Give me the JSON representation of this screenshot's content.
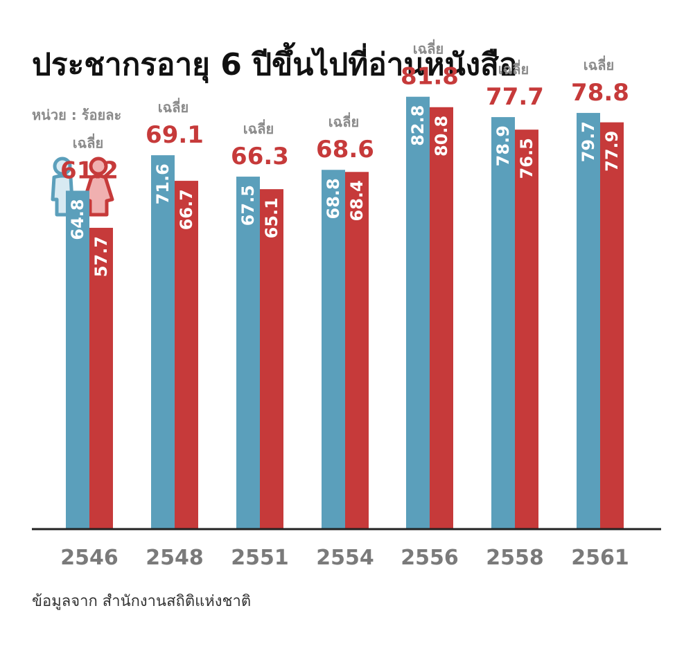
{
  "title": "ประชากรอายุ 6 ปีขึ้นไปที่อ่านหนังสือ",
  "unit_label": "หน่วย : ร้อยละ",
  "source": "ข้อมูลจาก  สำนักงานสถิติแห่งชาติ",
  "avg_label": "เฉลี่ย",
  "icons": [
    "male-icon",
    "female-icon"
  ],
  "colors": {
    "male": "#5b9fbb",
    "female": "#c63a3a",
    "axis": "#222222",
    "year": "#7a7a7a",
    "avg_label": "#8a8a8a"
  },
  "chart_data": {
    "type": "bar",
    "categories": [
      "2546",
      "2548",
      "2551",
      "2554",
      "2556",
      "2558",
      "2561"
    ],
    "series": [
      {
        "values": [
          64.8,
          71.6,
          67.5,
          68.8,
          82.8,
          78.9,
          79.7
        ]
      },
      {
        "values": [
          57.7,
          66.7,
          65.1,
          68.4,
          80.8,
          76.5,
          77.9
        ]
      }
    ],
    "averages": [
      61.2,
      69.1,
      66.3,
      68.6,
      81.8,
      77.7,
      78.8
    ],
    "value_labels": {
      "male": [
        "64.8",
        "71.6",
        "67.5",
        "68.8",
        "82.8",
        "78.9",
        "79.7"
      ],
      "female": [
        "57.7",
        "66.7",
        "65.1",
        "68.4",
        "80.8",
        "76.5",
        "77.9"
      ],
      "average": [
        "61.2",
        "69.1",
        "66.3",
        "68.6",
        "81.8",
        "77.7",
        "78.8"
      ]
    },
    "ylim": [
      0,
      100
    ],
    "grid": false,
    "legend": "top-left icons"
  }
}
